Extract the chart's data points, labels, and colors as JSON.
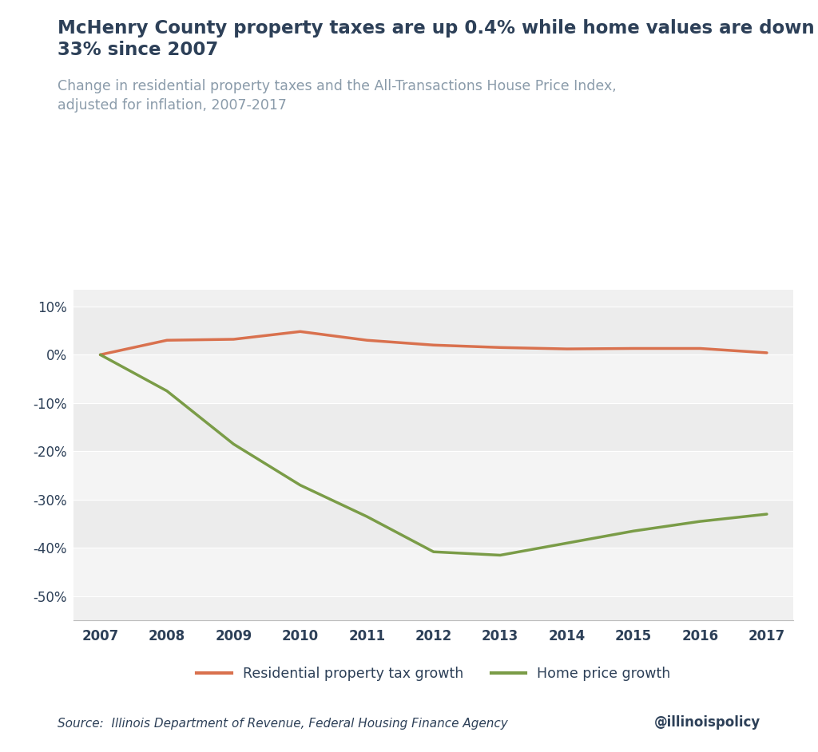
{
  "title": "McHenry County property taxes are up 0.4% while home values are down\n33% since 2007",
  "subtitle": "Change in residential property taxes and the All-Transactions House Price Index,\nadjusted for inflation, 2007-2017",
  "years": [
    2007,
    2008,
    2009,
    2010,
    2011,
    2012,
    2013,
    2014,
    2015,
    2016,
    2017
  ],
  "property_tax": [
    0.0,
    0.03,
    0.032,
    0.048,
    0.03,
    0.02,
    0.015,
    0.012,
    0.013,
    0.013,
    0.004
  ],
  "home_price": [
    0.0,
    -0.075,
    -0.185,
    -0.27,
    -0.335,
    -0.408,
    -0.415,
    -0.39,
    -0.365,
    -0.345,
    -0.33
  ],
  "tax_color": "#d9714e",
  "home_color": "#7a9c47",
  "title_color": "#2d4058",
  "subtitle_color": "#8a9baa",
  "bg_color": "#ffffff",
  "band_colors": [
    "#ececec",
    "#f4f4f4",
    "#ececec",
    "#f4f4f4",
    "#ececec",
    "#f4f4f4"
  ],
  "source_text": "Source:  Illinois Department of Revenue, Federal Housing Finance Agency",
  "handle_text": "@illinoispolicy",
  "legend_tax": "Residential property tax growth",
  "legend_home": "Home price growth",
  "ylim": [
    -0.55,
    0.135
  ],
  "yticks": [
    0.1,
    0.0,
    -0.1,
    -0.2,
    -0.3,
    -0.4,
    -0.5
  ],
  "line_width": 2.5
}
